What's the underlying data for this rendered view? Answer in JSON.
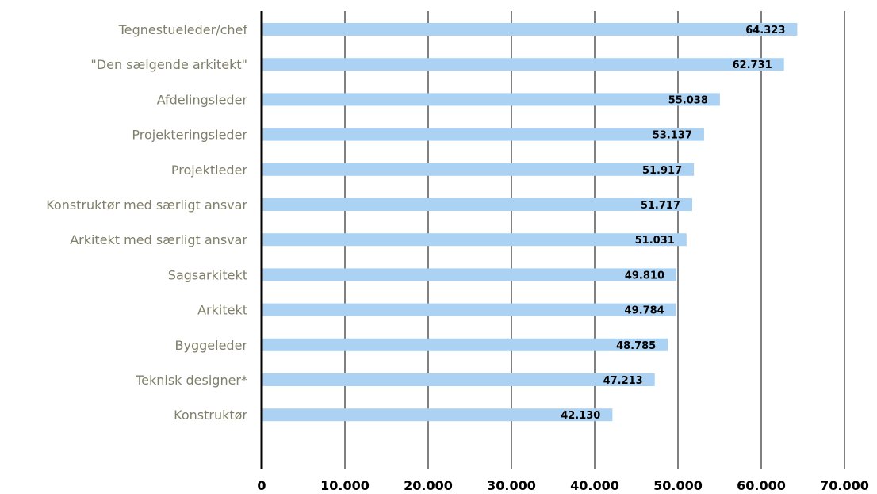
{
  "colors": {
    "bar": "#abd2f2",
    "gridline": "#000000",
    "axis": "#000000",
    "category_label": "#7f7f6a",
    "tick_label": "#000000",
    "value_label": "#000000"
  },
  "chart_data": {
    "type": "bar",
    "orientation": "horizontal",
    "title": "",
    "xlabel": "",
    "ylabel": "",
    "categories": [
      "Tegnestueleder/chef",
      "\"Den sælgende arkitekt\"",
      "Afdelingsleder",
      "Projekteringsleder",
      "Projektleder",
      "Konstruktør med særligt ansvar",
      "Arkitekt med særligt ansvar",
      "Sagsarkitekt",
      "Arkitekt",
      "Byggeleder",
      "Teknisk designer*",
      "Konstruktør"
    ],
    "values": [
      64323,
      62731,
      55038,
      53137,
      51917,
      51717,
      51031,
      49810,
      49784,
      48785,
      47213,
      42130
    ],
    "value_labels": [
      "64.323",
      "62.731",
      "55.038",
      "53.137",
      "51.917",
      "51.717",
      "51.031",
      "49.810",
      "49.784",
      "48.785",
      "47.213",
      "42.130"
    ],
    "xlim": [
      0,
      70000
    ],
    "xticks": [
      0,
      10000,
      20000,
      30000,
      40000,
      50000,
      60000,
      70000
    ],
    "xtick_labels": [
      "0",
      "10.000",
      "20.000",
      "30.000",
      "40.000",
      "50.000",
      "60.000",
      "70.000"
    ],
    "grid": "vertical",
    "legend": "none"
  }
}
